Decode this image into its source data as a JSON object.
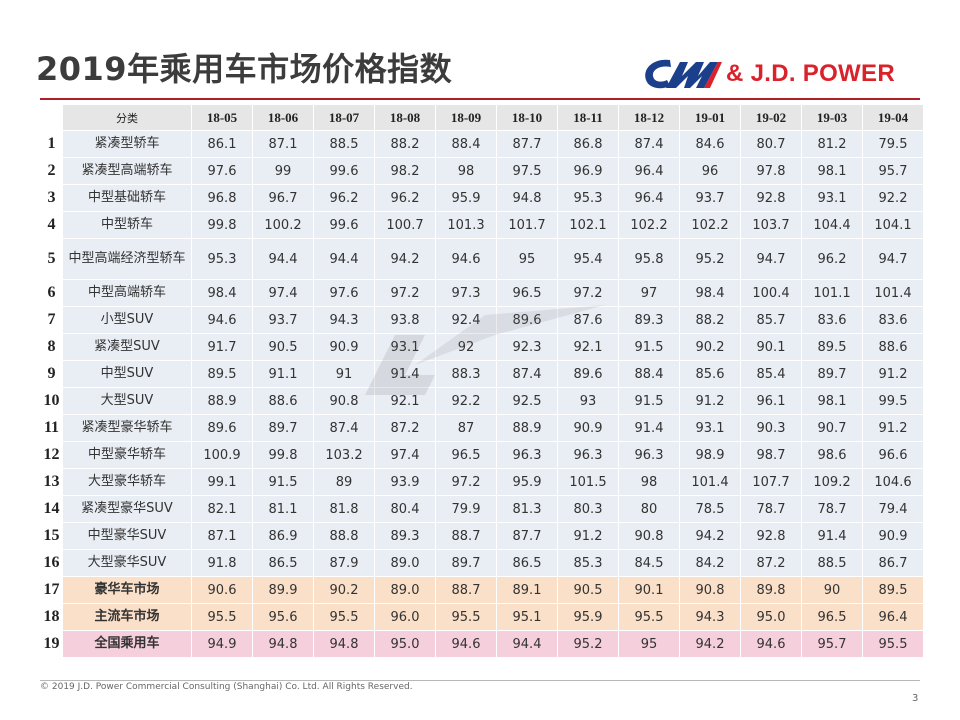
{
  "title": "2019年乘用车市场价格指数",
  "logo": {
    "text": "& J.D. POWER",
    "brand_color": "#d9222a",
    "cm_color": "#1c3f8c"
  },
  "table": {
    "category_header": "分类",
    "months": [
      "18-05",
      "18-06",
      "18-07",
      "18-08",
      "18-09",
      "18-10",
      "18-11",
      "18-12",
      "19-01",
      "19-02",
      "19-03",
      "19-04"
    ],
    "rows": [
      {
        "idx": "1",
        "name": "紧凑型轿车",
        "values": [
          "86.1",
          "87.1",
          "88.5",
          "88.2",
          "88.4",
          "87.7",
          "86.8",
          "87.4",
          "84.6",
          "80.7",
          "81.2",
          "79.5"
        ]
      },
      {
        "idx": "2",
        "name": "紧凑型高端轿车",
        "values": [
          "97.6",
          "99",
          "99.6",
          "98.2",
          "98",
          "97.5",
          "96.9",
          "96.4",
          "96",
          "97.8",
          "98.1",
          "95.7"
        ]
      },
      {
        "idx": "3",
        "name": "中型基础轿车",
        "values": [
          "96.8",
          "96.7",
          "96.2",
          "96.2",
          "95.9",
          "94.8",
          "95.3",
          "96.4",
          "93.7",
          "92.8",
          "93.1",
          "92.2"
        ]
      },
      {
        "idx": "4",
        "name": "中型轿车",
        "values": [
          "99.8",
          "100.2",
          "99.6",
          "100.7",
          "101.3",
          "101.7",
          "102.1",
          "102.2",
          "102.2",
          "103.7",
          "104.4",
          "104.1"
        ]
      },
      {
        "idx": "5",
        "name": "中型高端经济型轿车",
        "values": [
          "95.3",
          "94.4",
          "94.4",
          "94.2",
          "94.6",
          "95",
          "95.4",
          "95.8",
          "95.2",
          "94.7",
          "96.2",
          "94.7"
        ]
      },
      {
        "idx": "6",
        "name": "中型高端轿车",
        "values": [
          "98.4",
          "97.4",
          "97.6",
          "97.2",
          "97.3",
          "96.5",
          "97.2",
          "97",
          "98.4",
          "100.4",
          "101.1",
          "101.4"
        ]
      },
      {
        "idx": "7",
        "name": "小型SUV",
        "values": [
          "94.6",
          "93.7",
          "94.3",
          "93.8",
          "92.4",
          "89.6",
          "87.6",
          "89.3",
          "88.2",
          "85.7",
          "83.6",
          "83.6"
        ]
      },
      {
        "idx": "8",
        "name": "紧凑型SUV",
        "values": [
          "91.7",
          "90.5",
          "90.9",
          "93.1",
          "92",
          "92.3",
          "92.1",
          "91.5",
          "90.2",
          "90.1",
          "89.5",
          "88.6"
        ]
      },
      {
        "idx": "9",
        "name": "中型SUV",
        "values": [
          "89.5",
          "91.1",
          "91",
          "91.4",
          "88.3",
          "87.4",
          "89.6",
          "88.4",
          "85.6",
          "85.4",
          "89.7",
          "91.2"
        ]
      },
      {
        "idx": "10",
        "name": "大型SUV",
        "values": [
          "88.9",
          "88.6",
          "90.8",
          "92.1",
          "92.2",
          "92.5",
          "93",
          "91.5",
          "91.2",
          "96.1",
          "98.1",
          "99.5"
        ]
      },
      {
        "idx": "11",
        "name": "紧凑型豪华轿车",
        "values": [
          "89.6",
          "89.7",
          "87.4",
          "87.2",
          "87",
          "88.9",
          "90.9",
          "91.4",
          "93.1",
          "90.3",
          "90.7",
          "91.2"
        ]
      },
      {
        "idx": "12",
        "name": "中型豪华轿车",
        "values": [
          "100.9",
          "99.8",
          "103.2",
          "97.4",
          "96.5",
          "96.3",
          "96.3",
          "96.3",
          "98.9",
          "98.7",
          "98.6",
          "96.6"
        ]
      },
      {
        "idx": "13",
        "name": "大型豪华轿车",
        "values": [
          "99.1",
          "91.5",
          "89",
          "93.9",
          "97.2",
          "95.9",
          "101.5",
          "98",
          "101.4",
          "107.7",
          "109.2",
          "104.6"
        ]
      },
      {
        "idx": "14",
        "name": "紧凑型豪华SUV",
        "values": [
          "82.1",
          "81.1",
          "81.8",
          "80.4",
          "79.9",
          "81.3",
          "80.3",
          "80",
          "78.5",
          "78.7",
          "78.7",
          "79.4"
        ]
      },
      {
        "idx": "15",
        "name": "中型豪华SUV",
        "values": [
          "87.1",
          "86.9",
          "88.8",
          "89.3",
          "88.7",
          "87.7",
          "91.2",
          "90.8",
          "94.2",
          "92.8",
          "91.4",
          "90.9"
        ]
      },
      {
        "idx": "16",
        "name": "大型豪华SUV",
        "values": [
          "91.8",
          "86.5",
          "87.9",
          "89.0",
          "89.7",
          "86.5",
          "85.3",
          "84.5",
          "84.2",
          "87.2",
          "88.5",
          "86.7"
        ]
      },
      {
        "idx": "17",
        "name": "豪华车市场",
        "values": [
          "90.6",
          "89.9",
          "90.2",
          "89.0",
          "88.7",
          "89.1",
          "90.5",
          "90.1",
          "90.8",
          "89.8",
          "90",
          "89.5"
        ],
        "style": "sum-orange"
      },
      {
        "idx": "18",
        "name": "主流车市场",
        "values": [
          "95.5",
          "95.6",
          "95.5",
          "96.0",
          "95.5",
          "95.1",
          "95.9",
          "95.5",
          "94.3",
          "95.0",
          "96.5",
          "96.4"
        ],
        "style": "sum-orange"
      },
      {
        "idx": "19",
        "name": "全国乘用车",
        "values": [
          "94.9",
          "94.8",
          "94.8",
          "95.0",
          "94.6",
          "94.4",
          "95.2",
          "95",
          "94.2",
          "94.6",
          "95.7",
          "95.5"
        ],
        "style": "sum-pink"
      }
    ]
  },
  "footer": {
    "copyright": "© 2019 J.D. Power Commercial Consulting (Shanghai) Co. Ltd. All Rights Reserved.",
    "page_number": "3"
  },
  "colors": {
    "title_rule": "#b01f25",
    "row_fill": "#e9edf4",
    "header_fill": "#e6e6e6",
    "summary_orange": "#fbe0c9",
    "summary_pink": "#f5cfdc"
  }
}
